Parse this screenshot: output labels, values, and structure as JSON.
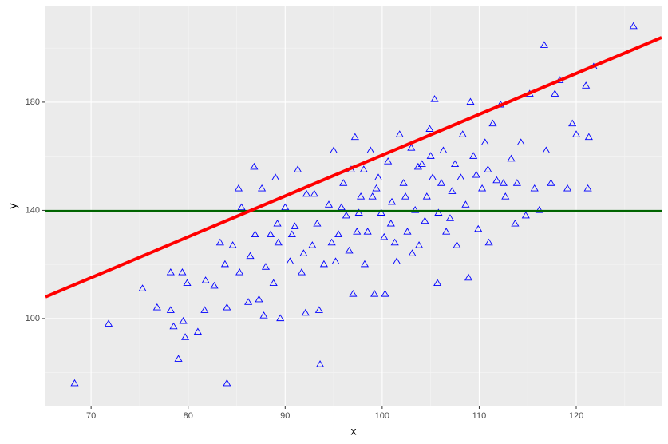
{
  "chart_data": {
    "type": "scatter",
    "x_label": "x",
    "y_label": "y",
    "xlim": [
      65.3,
      128.8
    ],
    "ylim": [
      67.8,
      215.4
    ],
    "xticks": [
      70,
      80,
      90,
      100,
      110,
      120
    ],
    "yticks": [
      100,
      140,
      180
    ],
    "grid": true,
    "series": [
      {
        "color": "#0000ff",
        "marker": "triangle-open",
        "x": [
          68.3,
          71.8,
          75.3,
          76.8,
          78.2,
          78.2,
          78.5,
          79.0,
          79.4,
          79.5,
          79.7,
          79.9,
          81.0,
          81.7,
          81.8,
          82.7,
          83.3,
          83.8,
          84.0,
          84.0,
          84.6,
          85.2,
          85.3,
          85.5,
          86.2,
          86.4,
          86.8,
          87.3,
          87.6,
          87.8,
          88.0,
          88.5,
          88.8,
          89.0,
          89.3,
          89.5,
          90.0,
          90.5,
          91.0,
          91.3,
          91.7,
          92.1,
          92.2,
          92.8,
          93.3,
          93.5,
          93.6,
          94.0,
          94.5,
          95.0,
          95.2,
          95.5,
          96.0,
          96.3,
          96.6,
          97.0,
          97.2,
          97.8,
          98.1,
          98.5,
          98.8,
          99.2,
          99.4,
          99.9,
          100.2,
          100.3,
          100.6,
          101.0,
          101.5,
          101.8,
          102.2,
          102.6,
          103.0,
          103.4,
          103.8,
          104.1,
          104.6,
          104.9,
          105.2,
          105.4,
          105.7,
          105.8,
          106.3,
          106.6,
          107.2,
          107.5,
          107.7,
          108.1,
          108.6,
          108.9,
          109.1,
          109.4,
          109.9,
          110.3,
          110.6,
          111.0,
          111.4,
          111.8,
          112.2,
          112.7,
          113.3,
          113.7,
          114.3,
          114.8,
          115.2,
          115.7,
          116.2,
          116.7,
          116.9,
          117.4,
          117.8,
          118.3,
          119.1,
          119.6,
          120.0,
          121.0,
          121.2,
          121.3,
          121.8,
          125.9,
          93.0,
          94.8,
          96.8,
          97.6,
          98.2,
          99.6,
          100.9,
          102.4,
          103.7,
          104.4,
          105.0,
          106.1,
          107.0,
          108.3,
          109.7,
          110.9,
          112.5,
          113.9,
          95.8,
          97.4,
          99.0,
          101.3,
          103.1,
          90.7,
          91.9,
          89.2,
          86.9
        ],
        "values": [
          76,
          98,
          111,
          104,
          103,
          117,
          97,
          85,
          117,
          99,
          93,
          113,
          95,
          103,
          114,
          112,
          128,
          120,
          104,
          76,
          127,
          148,
          117,
          141,
          106,
          123,
          156,
          107,
          148,
          101,
          119,
          131,
          113,
          152,
          128,
          100,
          141,
          121,
          134,
          155,
          117,
          102,
          146,
          127,
          135,
          103,
          83,
          120,
          142,
          162,
          121,
          131,
          150,
          138,
          125,
          109,
          167,
          145,
          155,
          132,
          162,
          109,
          148,
          139,
          130,
          109,
          158,
          143,
          121,
          168,
          150,
          132,
          163,
          140,
          127,
          157,
          145,
          170,
          152,
          181,
          113,
          139,
          162,
          132,
          147,
          157,
          127,
          152,
          142,
          115,
          180,
          160,
          133,
          148,
          165,
          128,
          172,
          151,
          179,
          145,
          159,
          135,
          165,
          138,
          183,
          148,
          140,
          201,
          162,
          150,
          183,
          188,
          148,
          172,
          168,
          186,
          148,
          167,
          193,
          208,
          146,
          128,
          155,
          139,
          120,
          152,
          135,
          145,
          156,
          136,
          160,
          150,
          137,
          168,
          153,
          155,
          150,
          150,
          141,
          132,
          145,
          128,
          124,
          131,
          124,
          135,
          131
        ]
      }
    ],
    "lines": [
      {
        "color": "#ff0000",
        "width": 4,
        "x": [
          65.3,
          128.8
        ],
        "y": [
          108.0,
          203.9
        ]
      }
    ],
    "hline": {
      "y": 139.7,
      "color": "#006400",
      "width": 3
    }
  }
}
